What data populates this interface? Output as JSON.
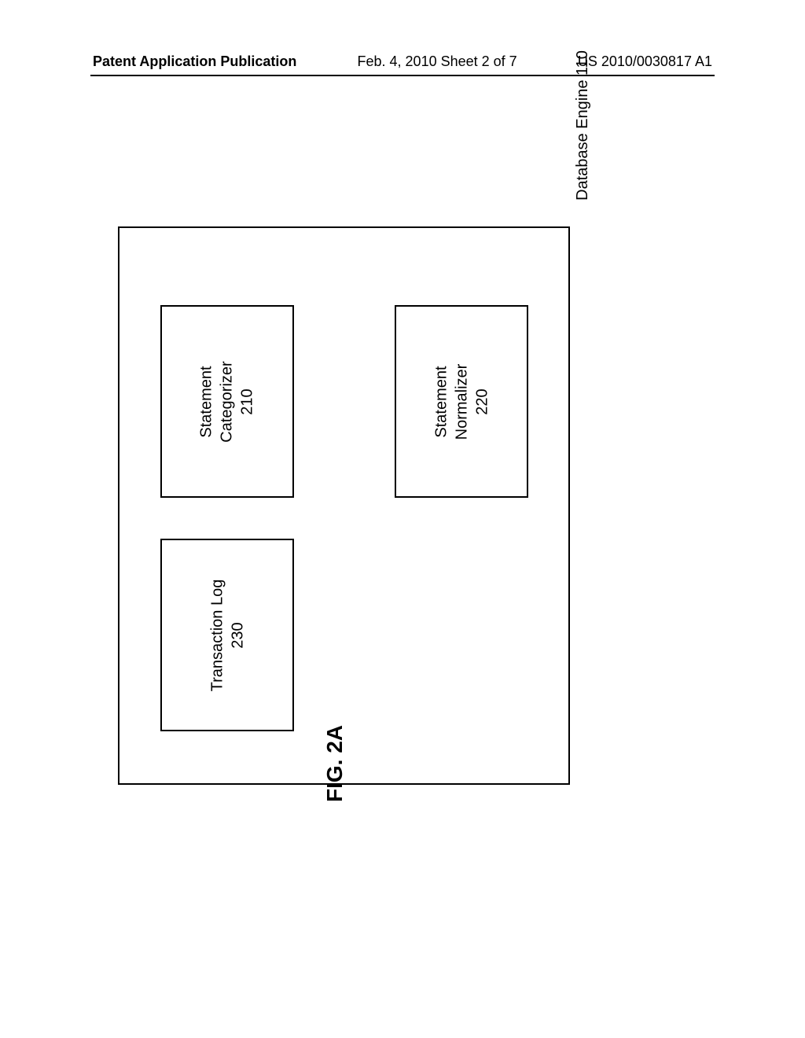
{
  "header": {
    "left": "Patent Application Publication",
    "center": "Feb. 4, 2010  Sheet 2 of 7",
    "right": "US 2010/0030817 A1"
  },
  "diagram": {
    "type": "flowchart",
    "main_box": {
      "title": "Database Engine 110",
      "border_color": "#000000",
      "border_width": 2,
      "background_color": "#ffffff"
    },
    "boxes": {
      "categorizer": {
        "line1": "Statement",
        "line2": "Categorizer",
        "line3": "210"
      },
      "normalizer": {
        "line1": "Statement",
        "line2": "Normalizer",
        "line3": "220"
      },
      "transaction": {
        "line1": "Transaction Log",
        "line2": "230"
      }
    },
    "figure_label": "FIG. 2A",
    "colors": {
      "background": "#ffffff",
      "border": "#000000",
      "text": "#000000"
    },
    "font_sizes": {
      "header": 18,
      "box_text": 20,
      "figure_label": 28
    }
  }
}
